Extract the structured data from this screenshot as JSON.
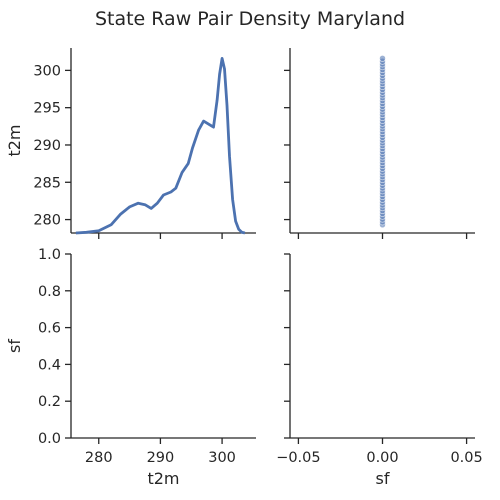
{
  "chart_data": {
    "type": "pairplot",
    "title": "State Raw Pair Density Maryland",
    "variables": [
      "t2m",
      "sf"
    ],
    "colors": {
      "series": "#4c72b0",
      "axis": "#262626"
    },
    "panels": [
      {
        "id": "t2m_t2m",
        "type": "line",
        "kind": "kde",
        "xlim": [
          275.5,
          305.5
        ],
        "ylim": [
          278.2,
          303
        ],
        "xticks": [
          280,
          290,
          300
        ],
        "yticks": [
          280,
          285,
          290,
          295,
          300
        ],
        "xticklabels_visible": false,
        "yticklabels_visible": true,
        "ylabel": "t2m",
        "x": [
          276.3,
          278,
          280,
          282,
          283.5,
          285,
          286.4,
          287.5,
          288.5,
          289.5,
          290.5,
          291.7,
          292.5,
          293.5,
          294.5,
          295.2,
          296.2,
          297,
          297.8,
          298.6,
          299.2,
          299.6,
          300,
          300.4,
          300.8,
          301.2,
          301.7,
          302.2,
          302.7,
          303.2,
          303.7
        ],
        "y": [
          278.2,
          278.3,
          278.5,
          279.3,
          280.7,
          281.7,
          282.2,
          282.0,
          281.5,
          282.2,
          283.3,
          283.7,
          284.2,
          286.3,
          287.5,
          289.6,
          292.0,
          293.2,
          292.8,
          292.4,
          296.0,
          299.5,
          301.6,
          300.2,
          295.3,
          288.5,
          282.7,
          279.8,
          278.7,
          278.3,
          278.2
        ]
      },
      {
        "id": "t2m_sf",
        "type": "scatter",
        "xlim": [
          -0.055,
          0.055
        ],
        "ylim": [
          278.2,
          303
        ],
        "xticks": [
          -0.05,
          0.0,
          0.05
        ],
        "yticks": [
          280,
          285,
          290,
          295,
          300
        ],
        "xticklabels_visible": false,
        "yticklabels_visible": false,
        "x": [
          0.0
        ],
        "y_range": [
          279.3,
          301.6
        ],
        "point_count": 60
      },
      {
        "id": "sf_t2m",
        "type": "empty",
        "xlim": [
          275.5,
          305.5
        ],
        "ylim": [
          0.0,
          1.0
        ],
        "xticks": [
          280,
          290,
          300
        ],
        "yticks": [
          0.0,
          0.2,
          0.4,
          0.6,
          0.8,
          1.0
        ],
        "xticklabels": [
          "280",
          "290",
          "300"
        ],
        "yticklabels": [
          "0.0",
          "0.2",
          "0.4",
          "0.6",
          "0.8",
          "1.0"
        ],
        "xlabel": "t2m",
        "ylabel": "sf"
      },
      {
        "id": "sf_sf",
        "type": "empty",
        "xlim": [
          -0.055,
          0.055
        ],
        "ylim": [
          0.0,
          1.0
        ],
        "xticks": [
          -0.05,
          0.0,
          0.05
        ],
        "yticks": [
          0.0,
          0.2,
          0.4,
          0.6,
          0.8,
          1.0
        ],
        "xticklabels": [
          "−0.05",
          "0.00",
          "0.05"
        ],
        "yticklabels_visible": false,
        "xlabel": "sf"
      }
    ]
  }
}
